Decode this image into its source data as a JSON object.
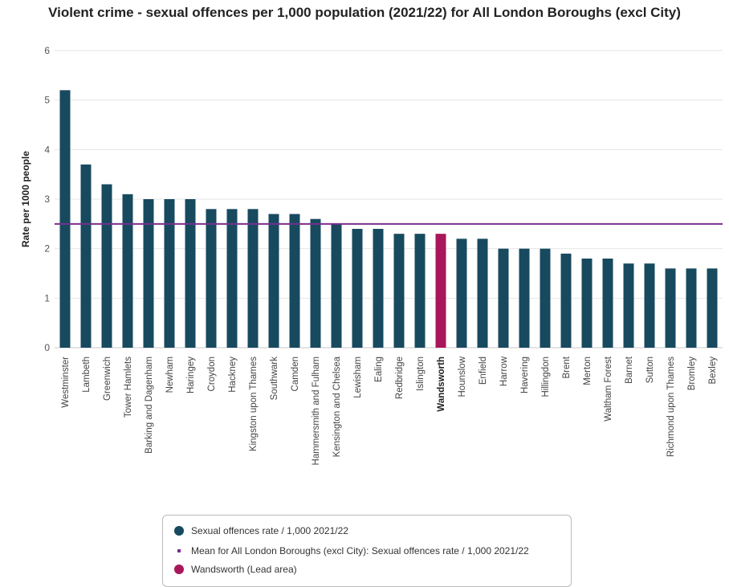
{
  "chart_data": {
    "type": "bar",
    "title": "Violent crime - sexual offences per 1,000 population (2021/22) for All London Boroughs (excl City)",
    "ylabel": "Rate per 1000 people",
    "xlabel": "",
    "ylim": [
      0,
      6
    ],
    "yticks": [
      "0",
      "1",
      "2",
      "3",
      "4",
      "5",
      "6"
    ],
    "grid": true,
    "legend_position": "bottom",
    "categories": [
      "Westminster",
      "Lambeth",
      "Greenwich",
      "Tower Hamlets",
      "Barking and Dagenham",
      "Newham",
      "Haringey",
      "Croydon",
      "Hackney",
      "Kingston upon Thames",
      "Southwark",
      "Camden",
      "Hammersmith and Fulham",
      "Kensington and Chelsea",
      "Lewisham",
      "Ealing",
      "Redbridge",
      "Islington",
      "Wandsworth",
      "Hounslow",
      "Enfield",
      "Harrow",
      "Havering",
      "Hillingdon",
      "Brent",
      "Merton",
      "Waltham Forest",
      "Barnet",
      "Sutton",
      "Richmond upon Thames",
      "Bromley",
      "Bexley"
    ],
    "series": [
      {
        "name": "Sexual offences rate / 1,000 2021/22",
        "color": "#174a5f",
        "values": [
          5.2,
          3.7,
          3.3,
          3.1,
          3.0,
          3.0,
          3.0,
          2.8,
          2.8,
          2.8,
          2.7,
          2.7,
          2.6,
          2.5,
          2.4,
          2.4,
          2.3,
          2.3,
          2.3,
          2.2,
          2.2,
          2.0,
          2.0,
          2.0,
          1.9,
          1.8,
          1.8,
          1.7,
          1.7,
          1.6,
          1.6,
          1.6
        ]
      }
    ],
    "mean_line": {
      "name": "Mean for All London Boroughs (excl City): Sexual offences rate / 1,000 2021/22",
      "value": 2.5,
      "color": "#7a2e8e"
    },
    "lead_area": {
      "name": "Wandsworth (Lead area)",
      "category": "Wandsworth",
      "color": "#a8175a"
    }
  }
}
